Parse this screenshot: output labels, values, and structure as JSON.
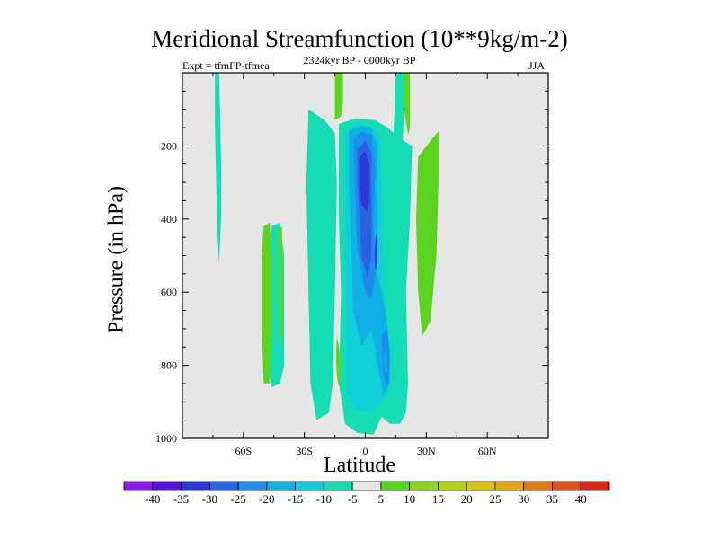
{
  "chart_data": {
    "type": "heatmap",
    "title": "Meridional Streamfunction (10**9kg/m-2)",
    "subtitle": "2324kyr BP - 0000kyr BP",
    "left_label": "Expt = tfmFP-tfmea",
    "right_label": "JJA",
    "xlabel": "Latitude",
    "ylabel": "Pressure (in hPa)",
    "xlim": [
      -90,
      90
    ],
    "ylim": [
      1000,
      0
    ],
    "x_ticks": [
      {
        "value": -60,
        "label": "60S"
      },
      {
        "value": -30,
        "label": "30S"
      },
      {
        "value": 0,
        "label": "0"
      },
      {
        "value": 30,
        "label": "30N"
      },
      {
        "value": 60,
        "label": "60N"
      }
    ],
    "y_ticks": [
      {
        "value": 200,
        "label": "200"
      },
      {
        "value": 400,
        "label": "400"
      },
      {
        "value": 600,
        "label": "600"
      },
      {
        "value": 800,
        "label": "800"
      },
      {
        "value": 1000,
        "label": "1000"
      }
    ],
    "colorbar": {
      "labels": [
        "-40",
        "-35",
        "-30",
        "-25",
        "-20",
        "-15",
        "-10",
        "-5",
        "5",
        "10",
        "15",
        "20",
        "25",
        "30",
        "35",
        "40"
      ],
      "colors": [
        "#8a1ae6",
        "#5a12d6",
        "#2c3ad4",
        "#2a62e0",
        "#1e8cea",
        "#10b0e6",
        "#10cfd6",
        "#16dcb4",
        "#e6e6e6",
        "#5ad41e",
        "#8cd61c",
        "#b4d214",
        "#d8c410",
        "#e6a812",
        "#e27a12",
        "#e0501a",
        "#d8261a"
      ],
      "background": "#e6e6e6"
    },
    "regions": [
      {
        "name": "cell-80s-positive",
        "value": -7,
        "points": [
          [
            -74,
            0
          ],
          [
            -72,
            0
          ],
          [
            -71.5,
            100
          ],
          [
            -71,
            250
          ],
          [
            -71,
            400
          ],
          [
            -72,
            525
          ],
          [
            -73,
            400
          ],
          [
            -74,
            150
          ]
        ]
      },
      {
        "name": "cell-45s-positive",
        "value": -7,
        "points": [
          [
            -46,
            420
          ],
          [
            -42,
            410
          ],
          [
            -40,
            500
          ],
          [
            -40,
            650
          ],
          [
            -40,
            800
          ],
          [
            -42,
            850
          ],
          [
            -46,
            860
          ],
          [
            -48,
            800
          ],
          [
            -48,
            600
          ]
        ]
      },
      {
        "name": "cell-20s-negative",
        "value": -7,
        "points": [
          [
            -28,
            100
          ],
          [
            -20,
            130
          ],
          [
            -15,
            165
          ],
          [
            -14,
            300
          ],
          [
            -15,
            600
          ],
          [
            -16,
            850
          ],
          [
            -18,
            930
          ],
          [
            -24,
            950
          ],
          [
            -27,
            850
          ],
          [
            -28,
            600
          ],
          [
            -29,
            300
          ]
        ]
      },
      {
        "name": "cell-north-tropics",
        "value": -7,
        "points": [
          [
            -13,
            140
          ],
          [
            -5,
            125
          ],
          [
            5,
            130
          ],
          [
            11,
            150
          ],
          [
            17,
            180
          ],
          [
            23,
            200
          ],
          [
            22,
            400
          ],
          [
            20,
            600
          ],
          [
            21,
            850
          ],
          [
            20,
            930
          ],
          [
            17,
            960
          ],
          [
            12,
            960
          ],
          [
            8,
            940
          ],
          [
            4,
            990
          ],
          [
            -4,
            985
          ],
          [
            -10,
            960
          ],
          [
            -13,
            850
          ],
          [
            -12,
            600
          ],
          [
            -13,
            400
          ]
        ]
      },
      {
        "name": "cell-tropics-core-10",
        "value": -10,
        "points": [
          [
            -11,
            170
          ],
          [
            -6,
            150
          ],
          [
            3,
            150
          ],
          [
            10,
            170
          ],
          [
            15,
            200
          ],
          [
            16,
            400
          ],
          [
            15,
            600
          ],
          [
            16,
            850
          ],
          [
            12,
            930
          ],
          [
            5,
            950
          ],
          [
            -5,
            960
          ],
          [
            -10,
            940
          ],
          [
            -11,
            700
          ],
          [
            -11,
            400
          ]
        ]
      },
      {
        "name": "cell-tropics-core-15",
        "value": -15,
        "points": [
          [
            -10,
            170
          ],
          [
            -5,
            140
          ],
          [
            2,
            145
          ],
          [
            7,
            170
          ],
          [
            8,
            300
          ],
          [
            9,
            500
          ],
          [
            10,
            650
          ],
          [
            13,
            780
          ],
          [
            12,
            870
          ],
          [
            8,
            900
          ],
          [
            2,
            930
          ],
          [
            -5,
            920
          ],
          [
            -9,
            880
          ],
          [
            -10,
            600
          ],
          [
            -10,
            300
          ]
        ]
      },
      {
        "name": "cell-tropics-core-20",
        "value": -20,
        "points": [
          [
            -8,
            160
          ],
          [
            -3,
            145
          ],
          [
            3,
            150
          ],
          [
            6,
            200
          ],
          [
            6,
            400
          ],
          [
            6,
            550
          ],
          [
            10,
            650
          ],
          [
            12,
            760
          ],
          [
            12,
            850
          ],
          [
            9,
            880
          ],
          [
            6,
            800
          ],
          [
            3,
            700
          ],
          [
            -2,
            750
          ],
          [
            -6,
            650
          ],
          [
            -7,
            450
          ],
          [
            -8,
            300
          ]
        ]
      },
      {
        "name": "cell-tropics-core-25",
        "value": -25,
        "points": [
          [
            -6,
            180
          ],
          [
            -2,
            160
          ],
          [
            3,
            170
          ],
          [
            5,
            260
          ],
          [
            4,
            400
          ],
          [
            5,
            550
          ],
          [
            3,
            620
          ],
          [
            0,
            600
          ],
          [
            -4,
            480
          ],
          [
            -5,
            330
          ]
        ]
      },
      {
        "name": "cell-tropics-core-30",
        "value": -30,
        "points": [
          [
            -4,
            210
          ],
          [
            0,
            185
          ],
          [
            3,
            220
          ],
          [
            3,
            350
          ],
          [
            3,
            500
          ],
          [
            1,
            560
          ],
          [
            -2,
            500
          ],
          [
            -3,
            380
          ],
          [
            -4,
            300
          ]
        ]
      },
      {
        "name": "cell-tropics-core-35",
        "value": -35,
        "points": [
          [
            -3,
            230
          ],
          [
            0,
            215
          ],
          [
            2,
            250
          ],
          [
            2,
            340
          ],
          [
            1,
            380
          ],
          [
            -2,
            360
          ],
          [
            -3,
            300
          ]
        ]
      },
      {
        "name": "cell-tropics-core-35b",
        "value": -35,
        "points": [
          [
            5,
            450
          ],
          [
            6,
            440
          ],
          [
            6,
            520
          ],
          [
            5,
            540
          ],
          [
            4.5,
            500
          ]
        ]
      },
      {
        "name": "cell-lower-core-25",
        "value": -25,
        "points": [
          [
            8,
            720
          ],
          [
            11,
            700
          ],
          [
            12,
            800
          ],
          [
            11,
            860
          ],
          [
            9,
            830
          ]
        ]
      },
      {
        "name": "cell-lower-core-20",
        "value": -20,
        "points": [
          [
            9,
            770
          ],
          [
            10.5,
            760
          ],
          [
            11,
            820
          ],
          [
            9.5,
            820
          ]
        ]
      },
      {
        "name": "cell-ne-cyan",
        "value": -7,
        "points": [
          [
            15,
            0
          ],
          [
            19,
            0
          ],
          [
            19,
            100
          ],
          [
            18,
            250
          ],
          [
            18,
            500
          ],
          [
            17,
            600
          ],
          [
            16,
            600
          ],
          [
            14,
            450
          ],
          [
            13,
            300
          ],
          [
            14,
            150
          ]
        ]
      },
      {
        "name": "cell-mid-green-top",
        "value": 7,
        "points": [
          [
            -15,
            0
          ],
          [
            -11,
            0
          ],
          [
            -11,
            80
          ],
          [
            -12,
            120
          ],
          [
            -15,
            130
          ],
          [
            -15,
            50
          ]
        ]
      },
      {
        "name": "cell-mid-green-low",
        "value": 7,
        "points": [
          [
            -14,
            720
          ],
          [
            -13,
            750
          ],
          [
            -12,
            800
          ],
          [
            -13,
            860
          ],
          [
            -14,
            830
          ],
          [
            -14.5,
            780
          ]
        ]
      },
      {
        "name": "cell-nh-green-top",
        "value": 7,
        "points": [
          [
            19,
            0
          ],
          [
            22,
            0
          ],
          [
            22,
            100
          ],
          [
            22,
            150
          ],
          [
            21,
            170
          ],
          [
            19,
            100
          ]
        ]
      },
      {
        "name": "cell-north-green",
        "value": 7,
        "points": [
          [
            26,
            230
          ],
          [
            33,
            180
          ],
          [
            36,
            160
          ],
          [
            36,
            300
          ],
          [
            35,
            500
          ],
          [
            32,
            680
          ],
          [
            28,
            720
          ],
          [
            26,
            600
          ],
          [
            25,
            400
          ]
        ]
      },
      {
        "name": "cell-sh-green-left",
        "value": 7,
        "points": [
          [
            -50,
            420
          ],
          [
            -47,
            410
          ],
          [
            -46,
            500
          ],
          [
            -46,
            700
          ],
          [
            -47,
            850
          ],
          [
            -50,
            850
          ],
          [
            -51,
            700
          ],
          [
            -51,
            500
          ]
        ]
      },
      {
        "name": "cell-sh-green-right",
        "value": 7,
        "points": [
          [
            -43,
            430
          ],
          [
            -41,
            420
          ],
          [
            -41,
            550
          ],
          [
            -41,
            700
          ],
          [
            -42,
            750
          ],
          [
            -43,
            650
          ]
        ]
      }
    ]
  }
}
